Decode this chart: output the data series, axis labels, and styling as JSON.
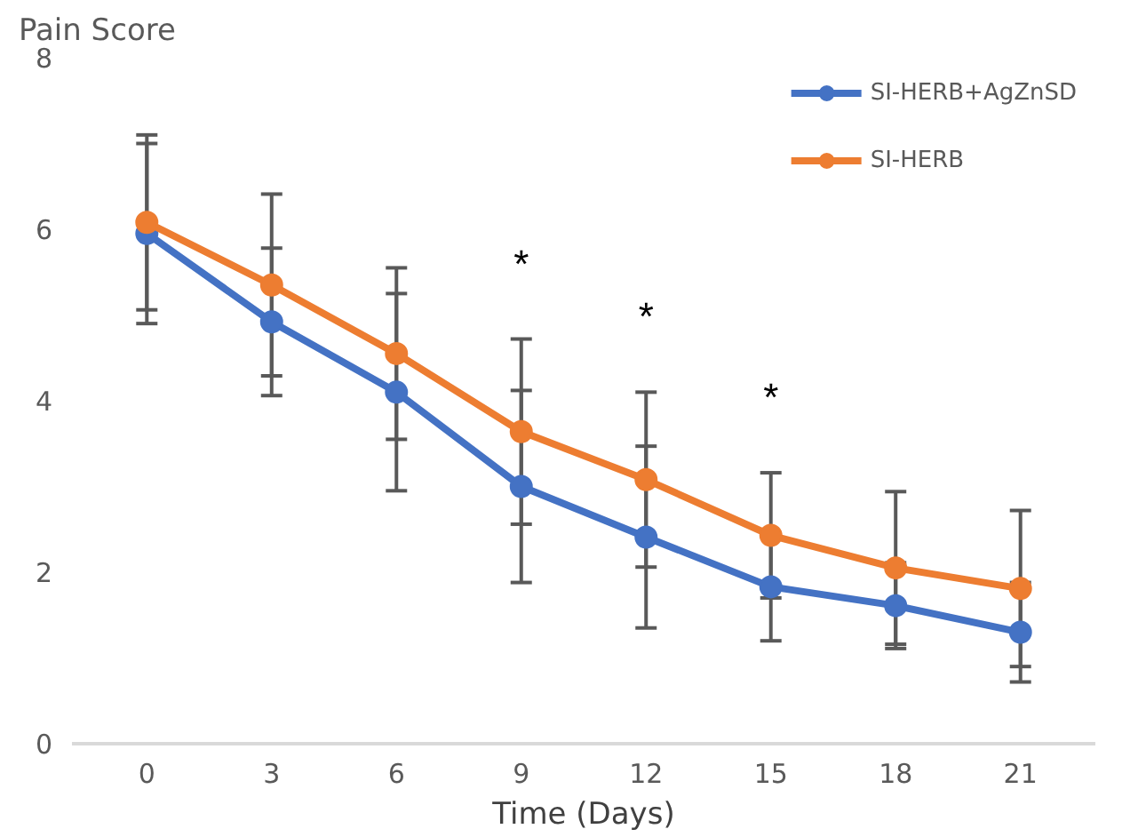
{
  "chart_data": {
    "type": "line",
    "ylabel": "Pain Score",
    "xlabel": "Time (Days)",
    "categories": [
      "0",
      "3",
      "6",
      "9",
      "12",
      "15",
      "18",
      "21"
    ],
    "series": [
      {
        "name": "SI-HERB+AgZnSD",
        "color": "#4472c4",
        "values": [
          5.95,
          4.92,
          4.1,
          3.0,
          2.41,
          1.83,
          1.61,
          1.3
        ],
        "errors": [
          1.05,
          0.86,
          1.15,
          1.12,
          1.06,
          0.63,
          0.5,
          0.58
        ]
      },
      {
        "name": "SI-HERB",
        "color": "#ed7d31",
        "values": [
          6.08,
          5.35,
          4.55,
          3.64,
          3.08,
          2.43,
          2.05,
          1.81
        ],
        "errors": [
          1.02,
          1.06,
          1.0,
          1.08,
          1.02,
          0.73,
          0.89,
          0.91
        ]
      }
    ],
    "annotations": [
      "*",
      "*",
      "*"
    ],
    "ylim": [
      0,
      8
    ],
    "yticks": [
      0,
      2,
      4,
      6,
      8
    ],
    "grid": false,
    "legend": "top right",
    "marker": "circle",
    "line_style": "solid"
  }
}
